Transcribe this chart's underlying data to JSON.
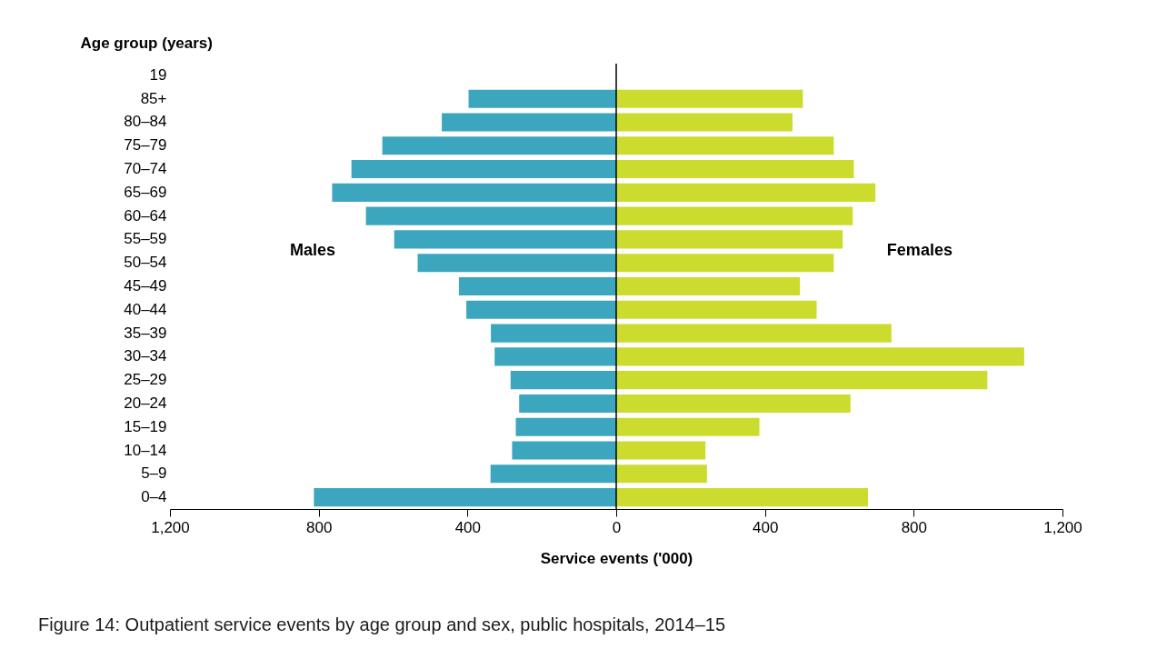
{
  "chart_data": {
    "type": "bar",
    "orientation": "horizontal",
    "stacked": true,
    "ylabel": "Age group (years)",
    "xlabel": "Service events ('000)",
    "categories": [
      "19",
      "85+",
      "80–84",
      "75–79",
      "70–74",
      "65–69",
      "60–64",
      "55–59",
      "50–54",
      "45–49",
      "40–44",
      "35–39",
      "30–34",
      "25–29",
      "20–24",
      "15–19",
      "10–14",
      "5–9",
      "0–4"
    ],
    "series": [
      {
        "name": "Males",
        "color": "#3ca6be",
        "values": [
          null,
          -397,
          -469,
          -629,
          -712,
          -764,
          -673,
          -597,
          -534,
          -423,
          -403,
          -337,
          -327,
          -284,
          -261,
          -270,
          -280,
          -338,
          -813
        ]
      },
      {
        "name": "Females",
        "color": "#cbdc2e",
        "values": [
          null,
          502,
          474,
          585,
          639,
          697,
          636,
          609,
          585,
          494,
          539,
          740,
          1097,
          998,
          630,
          385,
          240,
          244,
          677
        ]
      }
    ],
    "xlim": [
      -1200,
      1200
    ],
    "xticks": [
      {
        "value": -1200,
        "label": "1,200"
      },
      {
        "value": -800,
        "label": "800"
      },
      {
        "value": -400,
        "label": "400"
      },
      0,
      400,
      800,
      {
        "value": 1200,
        "label": "1,200"
      }
    ],
    "ref_lines": [
      {
        "axis": "x",
        "value": 0,
        "color": "#000000"
      }
    ],
    "grid": false,
    "legend": false,
    "annotations": [
      "Figure 14: Outpatient service events by age group and sex, public hospitals, 2014–15"
    ]
  }
}
